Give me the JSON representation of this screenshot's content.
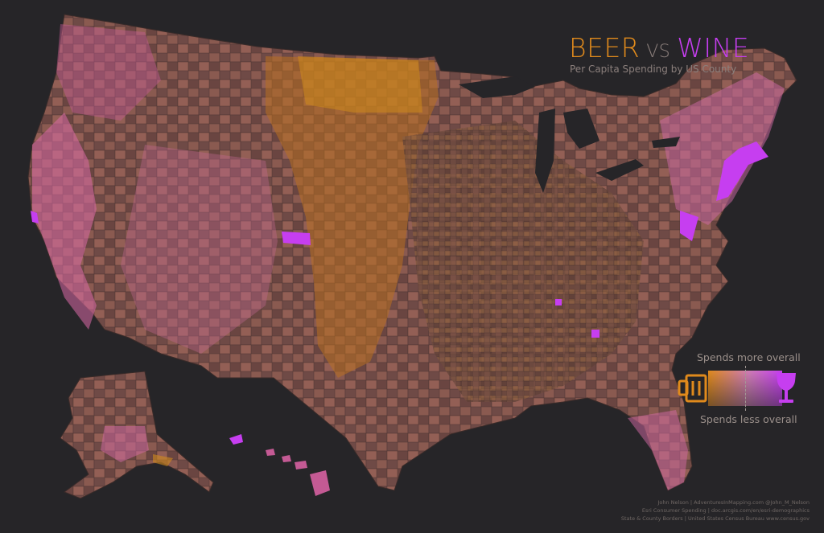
{
  "title": {
    "beer": "BEER",
    "vs": "VS",
    "wine": "WINE",
    "subtitle": "Per Capita Spending by US County"
  },
  "legend": {
    "more_label": "Spends more overall",
    "less_label": "Spends less overall",
    "left_icon": "beer-mug-icon",
    "right_icon": "wine-glass-icon",
    "beer_color": "#e08a1c",
    "wine_color": "#c63ef0",
    "mid_color": "#d46fb4",
    "low_color": "#4a3a34"
  },
  "credits": {
    "line1": "John Nelson | AdventuresInMapping.com    @John_M_Nelson",
    "line2": "Esri Consumer Spending | doc.arcgis.com/en/esri-demographics",
    "line3": "State & County Borders | United States Census Bureau   www.census.gov"
  },
  "colors": {
    "background": "#262528",
    "land_base": "#7a4f4a"
  }
}
